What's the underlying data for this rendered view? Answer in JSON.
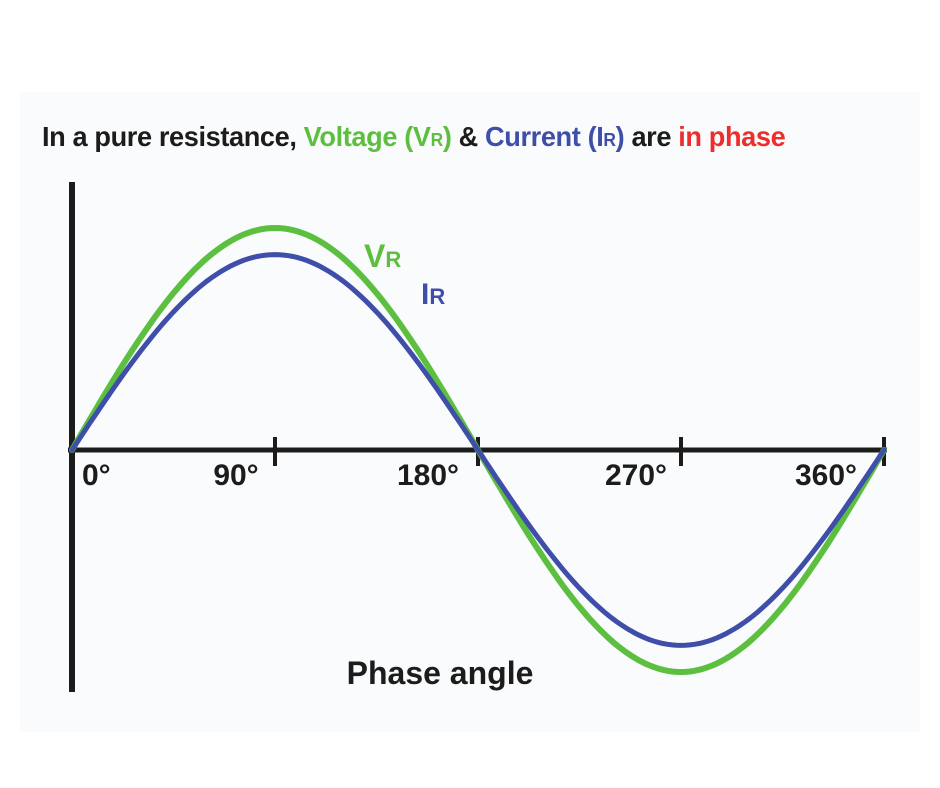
{
  "title": {
    "prefix": "In a pure resistance, ",
    "voltage_word": "Voltage (V",
    "voltage_sub": "R",
    "voltage_close": ")",
    "amp": " & ",
    "current_word": "Current (I",
    "current_sub": "R",
    "current_close": ")",
    "are": " are ",
    "in_phase": "in phase"
  },
  "labels": {
    "voltage_main": "V",
    "voltage_sub": "R",
    "current_main": "I",
    "current_sub": "R",
    "x_axis": "Phase angle"
  },
  "ticks": [
    "0°",
    "90°",
    "180°",
    "270°",
    "360°"
  ],
  "tick_angles": [
    0,
    90,
    180,
    270,
    360
  ],
  "curves": {
    "voltage": {
      "amplitude": 1.0,
      "phase_deg": 0
    },
    "current": {
      "amplitude": 0.88,
      "phase_deg": 0
    }
  },
  "colors": {
    "voltage": "#5cbf3f",
    "current": "#3f4ea8",
    "in_phase": "#ee2d2d",
    "axes": "#1c1c1c",
    "text": "#1c1c1c",
    "panel": "#fafbfc"
  }
}
